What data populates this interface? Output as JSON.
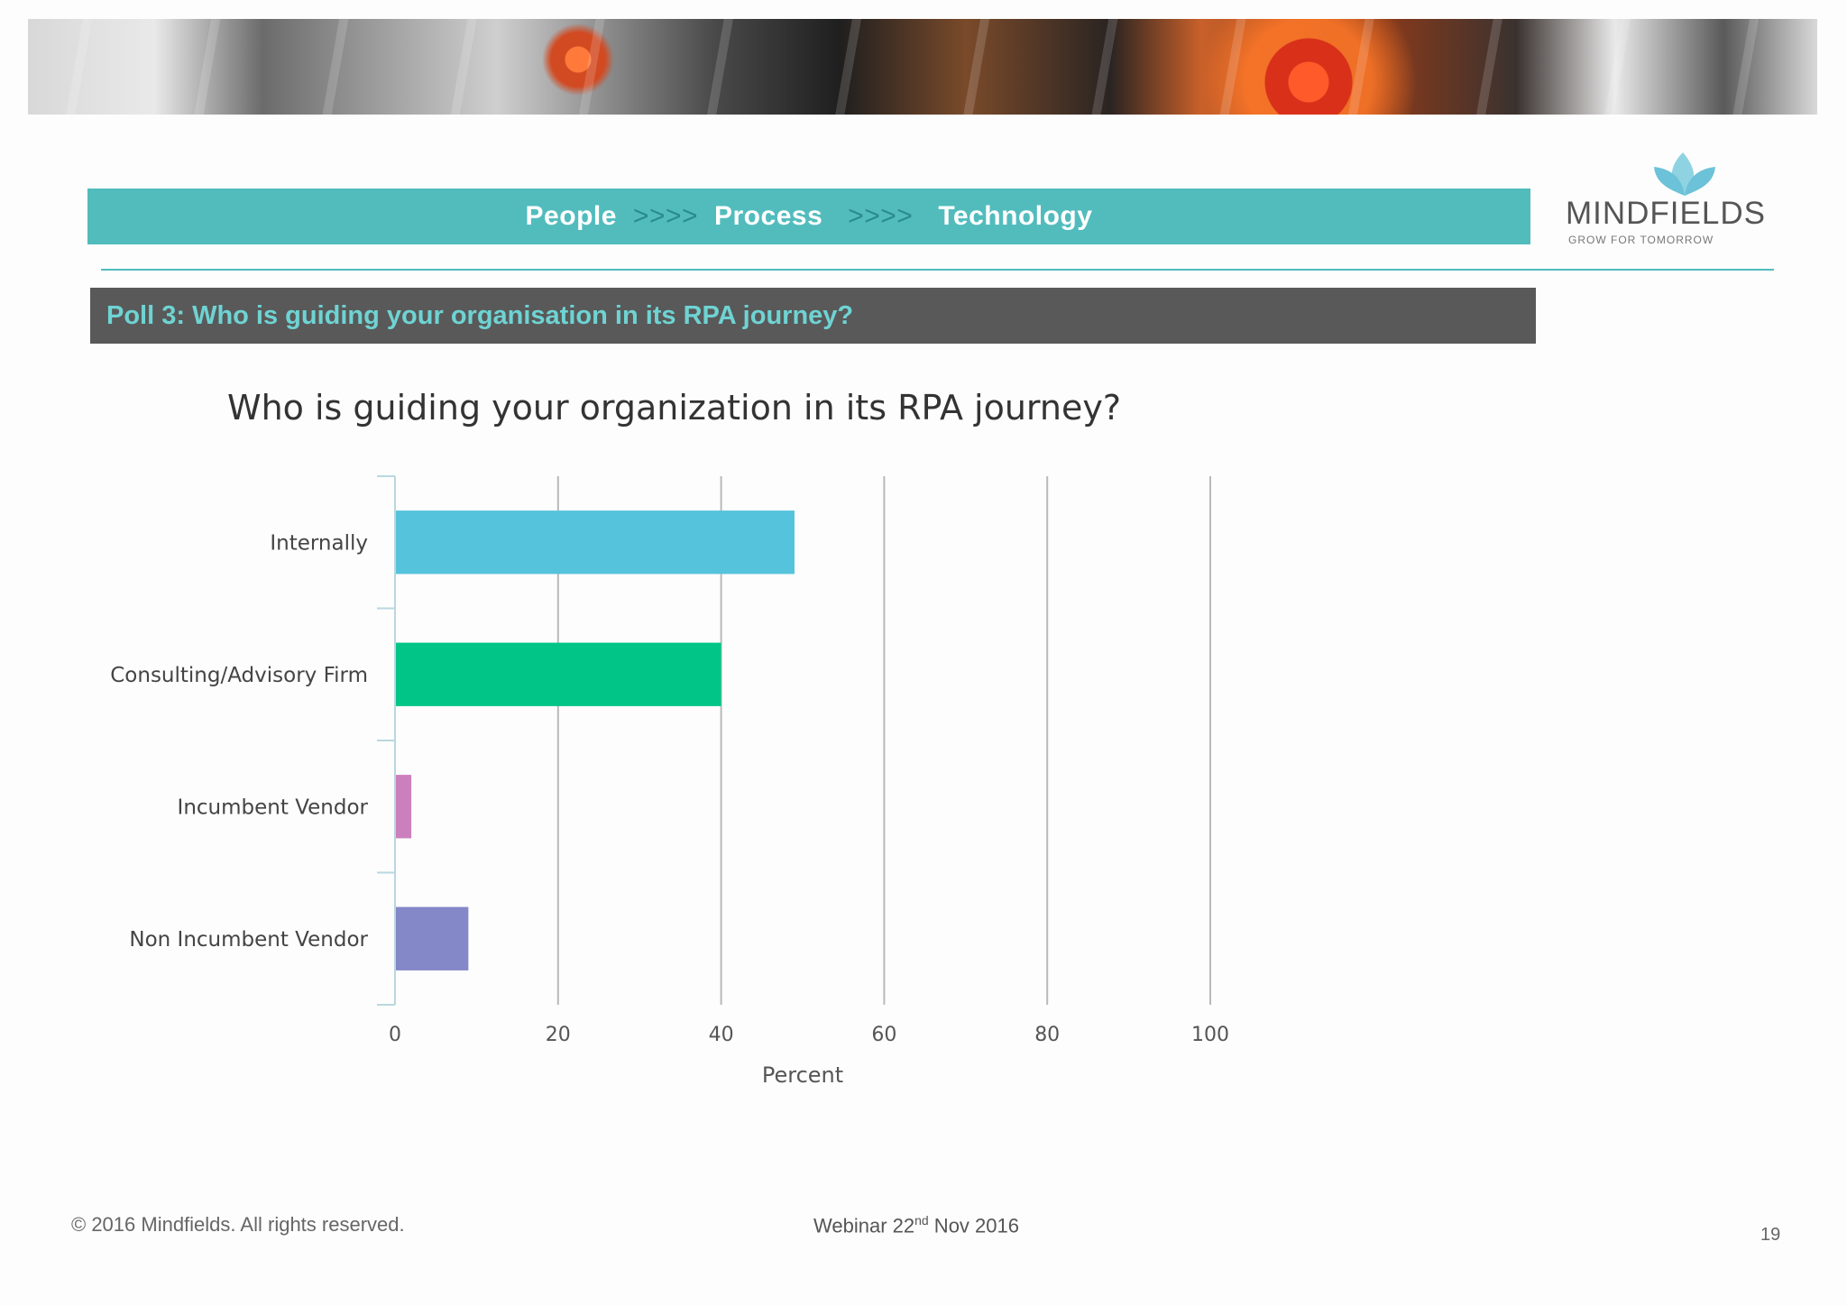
{
  "header": {
    "people": "People",
    "arrows1": ">>>>",
    "process": "Process",
    "arrows2": ">>>>",
    "technology": "Technology"
  },
  "logo": {
    "word": "MINDFIELDS",
    "tagline": "GROW FOR TOMORROW"
  },
  "poll": {
    "title": "Poll 3: Who is guiding your organisation in its RPA journey?"
  },
  "footer": {
    "copyright": "© 2016  Mindfields. All rights reserved.",
    "webinar_prefix": "Webinar 22",
    "webinar_sup": "nd",
    "webinar_suffix": " Nov 2016",
    "page_number": "19"
  },
  "colors": {
    "teal": "#52bcbd",
    "poll_text": "#6fd3d3",
    "dark_bar": "#595959"
  },
  "chart_data": {
    "type": "bar",
    "orientation": "horizontal",
    "title": "Who is guiding your organization in its RPA journey?",
    "xlabel": "Percent",
    "ylabel": "",
    "categories": [
      "Internally",
      "Consulting/Advisory Firm",
      "Incumbent Vendor",
      "Non Incumbent Vendor"
    ],
    "values": [
      49,
      40,
      2,
      9
    ],
    "bar_colors": [
      "#56c3dc",
      "#00c587",
      "#cc7fbd",
      "#8488c8"
    ],
    "xlim": [
      0,
      100
    ],
    "xticks": [
      0,
      20,
      40,
      60,
      80,
      100
    ],
    "grid": true,
    "legend": "none"
  }
}
